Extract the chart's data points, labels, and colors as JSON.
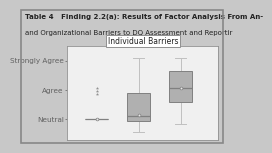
{
  "title_line1": "Table 4   Finding 2.2(a): Results of Factor Analysis From An-",
  "title_line2": "and Organizational Barriers to DQ Assessment and Reportir",
  "group_label": "Individual Barriers",
  "ytick_labels": [
    "Neutral",
    "Agree",
    "Strongly Agree"
  ],
  "ytick_positions": [
    3,
    4,
    5
  ],
  "boxes": [
    {
      "x": 1,
      "whisker_low": 3.0,
      "q1": 3.0,
      "median": 3.0,
      "q3": 3.0,
      "whisker_high": 3.0,
      "mean": 3.0,
      "outliers": [
        4.05,
        3.95,
        3.85
      ],
      "has_whisker_low": false,
      "has_whisker_high": false
    },
    {
      "x": 2,
      "whisker_low": 2.55,
      "q1": 2.95,
      "median": 3.1,
      "q3": 3.9,
      "whisker_high": 5.1,
      "mean": 3.15,
      "outliers": [],
      "has_whisker_low": true,
      "has_whisker_high": true
    },
    {
      "x": 3,
      "whisker_low": 2.85,
      "q1": 3.6,
      "median": 4.05,
      "q3": 4.65,
      "whisker_high": 5.1,
      "mean": 4.05,
      "outliers": [],
      "has_whisker_low": true,
      "has_whisker_high": true
    }
  ],
  "ylim": [
    2.3,
    5.5
  ],
  "xlim": [
    0.3,
    3.9
  ],
  "plot_bg": "#f0f0f0",
  "outer_bg": "#c8c8c8",
  "title_bg": "#d8d8d8",
  "box_face_color": "#b0b0b0",
  "box_edge_color": "#808080",
  "whisker_color": "#c0c0c0",
  "median_color": "#808080",
  "mean_marker_facecolor": "#e8e8e8",
  "mean_marker_edgecolor": "#808080",
  "outlier_color": "#909090",
  "font_size_title": 5.0,
  "font_size_ylabel": 5.2,
  "font_size_group": 5.5,
  "box_width": 0.55
}
